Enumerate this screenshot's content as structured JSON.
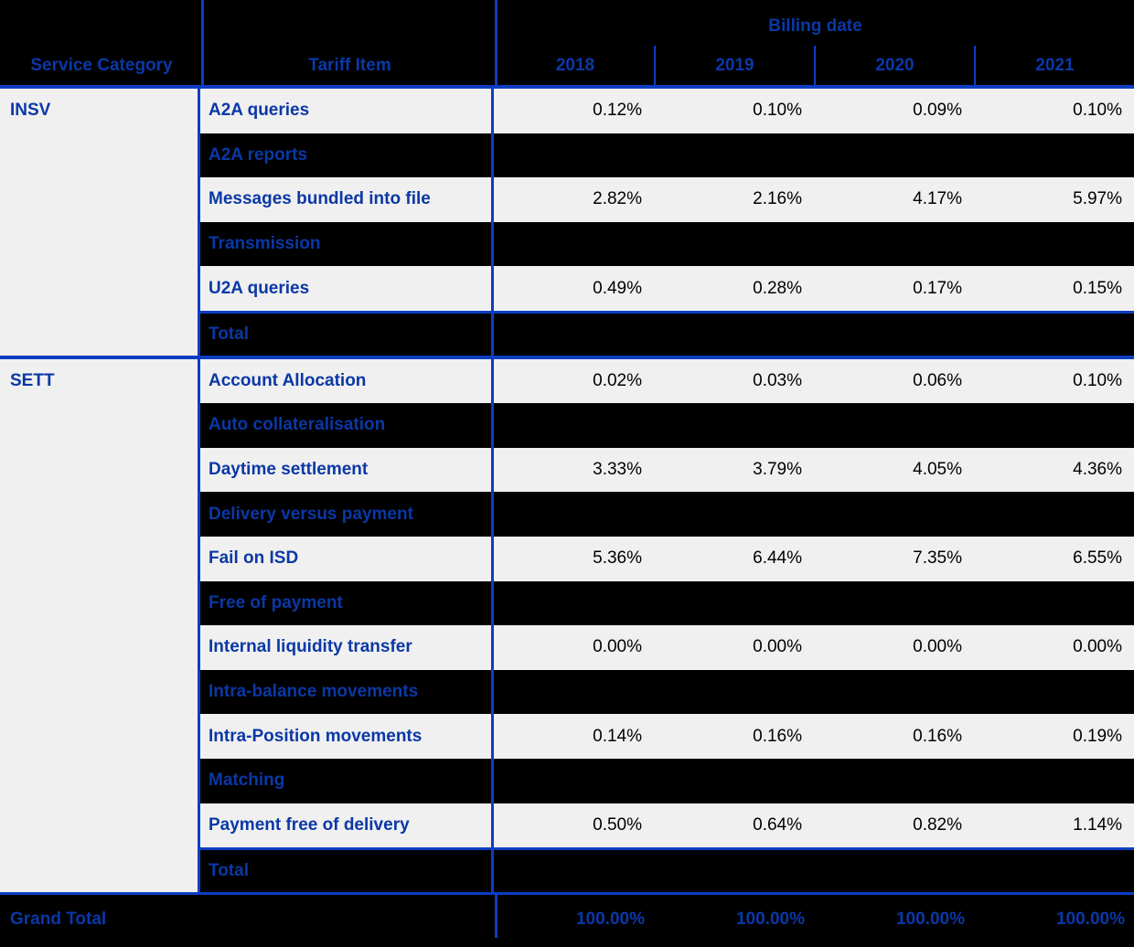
{
  "header": {
    "group_label": "Billing date",
    "service_category": "Service Category",
    "tariff_item": "Tariff Item",
    "years": [
      "2018",
      "2019",
      "2020",
      "2021"
    ]
  },
  "groups": [
    {
      "category": "INSV",
      "rows": [
        {
          "item": "A2A queries",
          "values": [
            "0.12%",
            "0.10%",
            "0.09%",
            "0.10%"
          ]
        },
        {
          "item": "A2A reports"
        },
        {
          "item": "Messages bundled into file",
          "values": [
            "2.82%",
            "2.16%",
            "4.17%",
            "5.97%"
          ]
        },
        {
          "item": "Transmission"
        },
        {
          "item": "U2A queries",
          "values": [
            "0.49%",
            "0.28%",
            "0.17%",
            "0.15%"
          ]
        },
        {
          "item": "Total"
        }
      ]
    },
    {
      "category": "SETT",
      "rows": [
        {
          "item": "Account Allocation",
          "values": [
            "0.02%",
            "0.03%",
            "0.06%",
            "0.10%"
          ]
        },
        {
          "item": "Auto collateralisation"
        },
        {
          "item": "Daytime settlement",
          "values": [
            "3.33%",
            "3.79%",
            "4.05%",
            "4.36%"
          ]
        },
        {
          "item": "Delivery versus payment"
        },
        {
          "item": "Fail on ISD",
          "values": [
            "5.36%",
            "6.44%",
            "7.35%",
            "6.55%"
          ]
        },
        {
          "item": "Free of payment"
        },
        {
          "item": "Internal liquidity transfer",
          "values": [
            "0.00%",
            "0.00%",
            "0.00%",
            "0.00%"
          ]
        },
        {
          "item": "Intra-balance movements"
        },
        {
          "item": "Intra-Position movements",
          "values": [
            "0.14%",
            "0.16%",
            "0.16%",
            "0.19%"
          ]
        },
        {
          "item": "Matching"
        },
        {
          "item": "Payment free of delivery",
          "values": [
            "0.50%",
            "0.64%",
            "0.82%",
            "1.14%"
          ]
        },
        {
          "item": "Total"
        }
      ]
    }
  ],
  "grand_total": {
    "label": "Grand Total",
    "values": [
      "100.00%",
      "100.00%",
      "100.00%",
      "100.00%"
    ]
  },
  "colors": {
    "text_blue": "#0A38A6",
    "line_blue": "#0D3EC2",
    "row_light": "#F0F0F0",
    "row_dark": "#000000"
  }
}
